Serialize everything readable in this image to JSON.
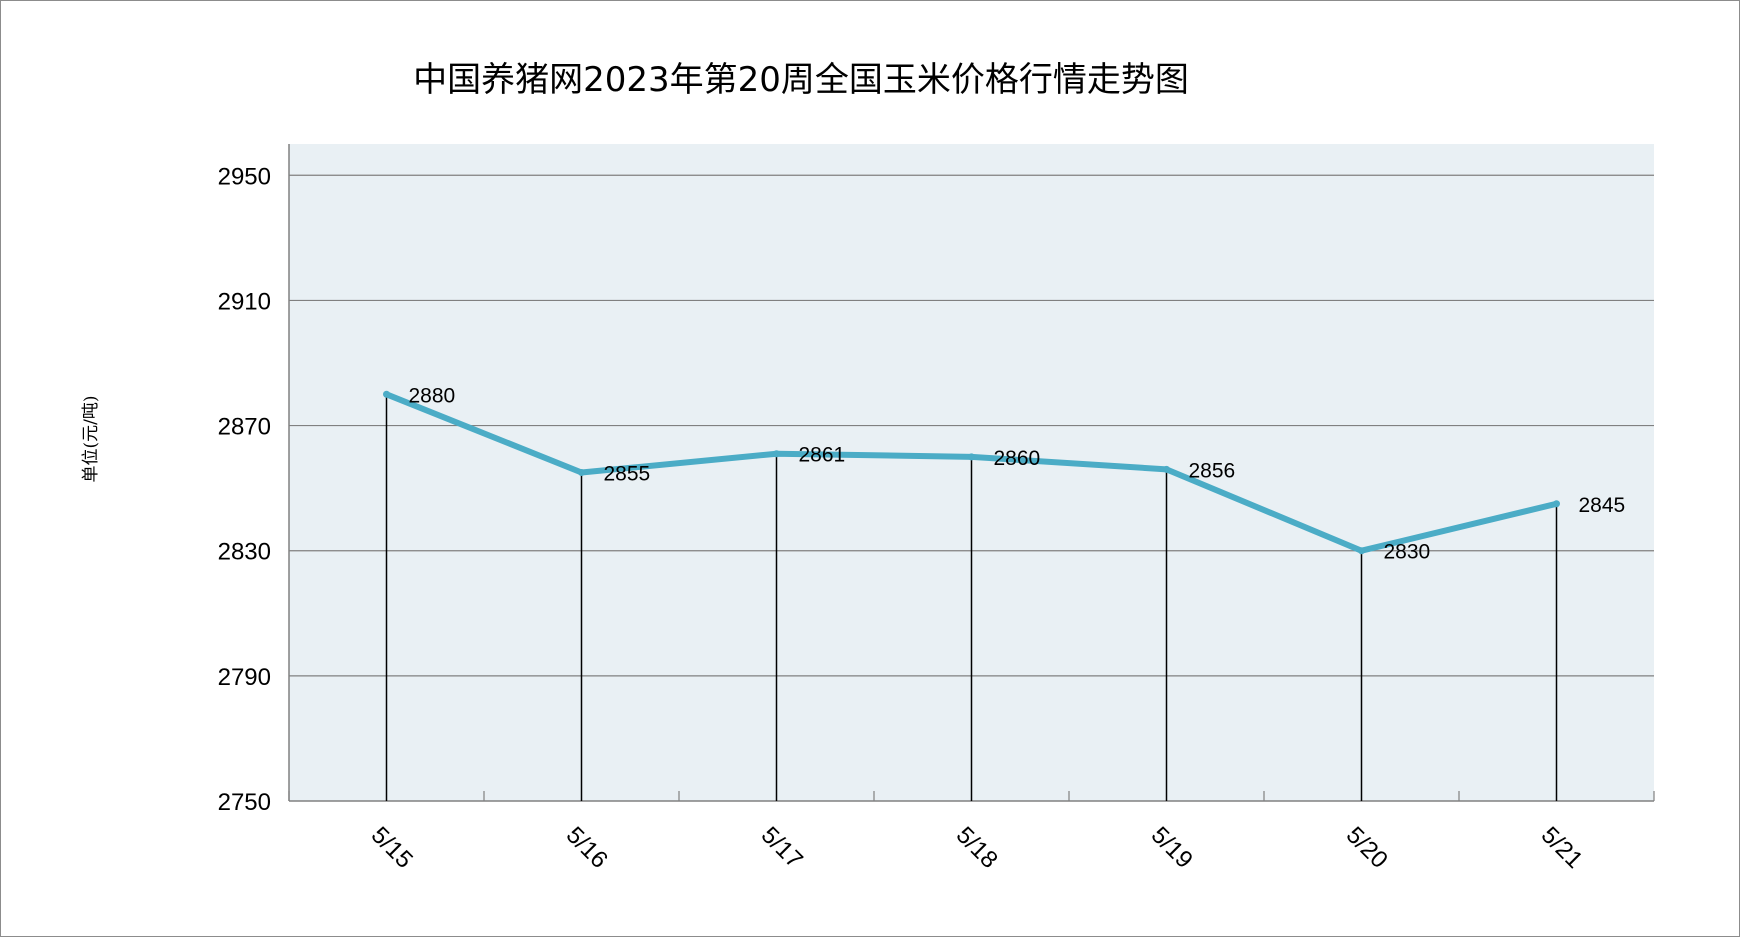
{
  "chart_data": {
    "type": "line",
    "title": "中国养猪网2023年第20周全国玉米价格行情走势图",
    "ylabel": "单位(元/吨)",
    "xlabel": "",
    "categories": [
      "5/15",
      "5/16",
      "5/17",
      "5/18",
      "5/19",
      "5/20",
      "5/21"
    ],
    "series": [
      {
        "values": [
          2880,
          2855,
          2861,
          2860,
          2856,
          2830,
          2845
        ]
      }
    ],
    "data_labels": [
      "2880",
      "2855",
      "2861",
      "2860",
      "2856",
      "2830",
      "2845"
    ],
    "yticks": [
      2750,
      2790,
      2830,
      2870,
      2910,
      2950
    ],
    "ytick_labels": [
      "2750",
      "2790",
      "2830",
      "2870",
      "2910",
      "2950"
    ],
    "ylim": [
      2750,
      2960
    ],
    "grid": true,
    "legend": "none",
    "drop_lines": true,
    "colors": {
      "line": "#4bacc6",
      "plot_background": "#e9f0f4",
      "grid": "#808080",
      "axis": "#808080",
      "drop_line": "#000000"
    }
  }
}
